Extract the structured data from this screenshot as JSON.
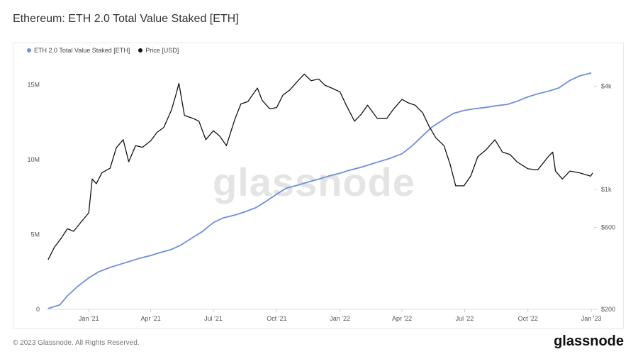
{
  "page": {
    "title": "Ethereum: ETH 2.0 Total Value Staked [ETH]",
    "watermark": "glassnode",
    "footer_copyright": "© 2023 Glassnode. All Rights Reserved.",
    "footer_brand": "glassnode"
  },
  "colors": {
    "staked": "#6f8fd8",
    "price": "#111111",
    "grid": "#f0f0f0"
  },
  "chart_data": {
    "type": "line",
    "title": "Ethereum: ETH 2.0 Total Value Staked [ETH]",
    "legend_position": "top-left",
    "grid": false,
    "xlabel": "",
    "x_ticks": [
      "Jan '21",
      "Apr '21",
      "Jul '21",
      "Oct '21",
      "Jan '22",
      "Apr '22",
      "Jul '22",
      "Oct '22",
      "Jan '23"
    ],
    "x_tick_dates": [
      "2021-01-01",
      "2021-04-01",
      "2021-07-01",
      "2021-10-01",
      "2022-01-01",
      "2022-04-01",
      "2022-07-01",
      "2022-10-01",
      "2023-01-01"
    ],
    "xlim": [
      "2020-11-01",
      "2023-01-05"
    ],
    "y_left": {
      "label": "",
      "ticks": [
        "0",
        "5M",
        "10M",
        "15M"
      ],
      "tick_values": [
        0,
        5000000,
        10000000,
        15000000
      ],
      "ylim": [
        0,
        16500000
      ]
    },
    "y_right": {
      "label": "",
      "scale": "log",
      "ticks": [
        "$200",
        "$600",
        "$1k",
        "$4k"
      ],
      "tick_values": [
        200,
        600,
        1000,
        4000
      ],
      "ylim": [
        200,
        5500
      ]
    },
    "series": [
      {
        "name": "ETH 2.0 Total Value Staked [ETH]",
        "axis": "left",
        "x": [
          "2020-11-03",
          "2020-11-20",
          "2020-12-01",
          "2020-12-15",
          "2021-01-01",
          "2021-01-15",
          "2021-02-01",
          "2021-02-15",
          "2021-03-01",
          "2021-03-15",
          "2021-04-01",
          "2021-04-15",
          "2021-05-01",
          "2021-05-15",
          "2021-06-01",
          "2021-06-15",
          "2021-07-01",
          "2021-07-15",
          "2021-08-01",
          "2021-08-15",
          "2021-09-01",
          "2021-09-15",
          "2021-10-01",
          "2021-10-15",
          "2021-11-01",
          "2021-11-15",
          "2021-12-01",
          "2021-12-15",
          "2022-01-01",
          "2022-01-15",
          "2022-02-01",
          "2022-02-15",
          "2022-03-01",
          "2022-03-15",
          "2022-04-01",
          "2022-04-15",
          "2022-05-01",
          "2022-05-15",
          "2022-06-01",
          "2022-06-15",
          "2022-07-01",
          "2022-07-15",
          "2022-08-01",
          "2022-08-15",
          "2022-09-01",
          "2022-09-15",
          "2022-10-01",
          "2022-10-15",
          "2022-11-01",
          "2022-11-15",
          "2022-12-01",
          "2022-12-15",
          "2023-01-01"
        ],
        "values": [
          50000,
          300000,
          900000,
          1500000,
          2100000,
          2500000,
          2800000,
          3000000,
          3200000,
          3400000,
          3600000,
          3800000,
          4000000,
          4300000,
          4800000,
          5200000,
          5800000,
          6100000,
          6300000,
          6500000,
          6800000,
          7200000,
          7700000,
          8100000,
          8300000,
          8500000,
          8700000,
          8900000,
          9100000,
          9300000,
          9500000,
          9700000,
          9900000,
          10100000,
          10400000,
          10900000,
          11600000,
          12200000,
          12700000,
          13100000,
          13300000,
          13400000,
          13500000,
          13600000,
          13700000,
          13900000,
          14200000,
          14400000,
          14600000,
          14800000,
          15300000,
          15600000,
          15800000
        ]
      },
      {
        "name": "Price [USD]",
        "axis": "right",
        "x": [
          "2020-11-03",
          "2020-11-12",
          "2020-11-22",
          "2020-12-01",
          "2020-12-10",
          "2020-12-20",
          "2021-01-01",
          "2021-01-06",
          "2021-01-12",
          "2021-01-20",
          "2021-02-01",
          "2021-02-10",
          "2021-02-20",
          "2021-02-28",
          "2021-03-10",
          "2021-03-20",
          "2021-04-01",
          "2021-04-10",
          "2021-04-20",
          "2021-05-01",
          "2021-05-07",
          "2021-05-12",
          "2021-05-20",
          "2021-06-01",
          "2021-06-10",
          "2021-06-20",
          "2021-07-01",
          "2021-07-10",
          "2021-07-20",
          "2021-08-01",
          "2021-08-10",
          "2021-08-20",
          "2021-09-03",
          "2021-09-10",
          "2021-09-21",
          "2021-10-01",
          "2021-10-10",
          "2021-10-20",
          "2021-11-01",
          "2021-11-10",
          "2021-11-20",
          "2021-12-01",
          "2021-12-10",
          "2021-12-20",
          "2022-01-01",
          "2022-01-10",
          "2022-01-22",
          "2022-02-01",
          "2022-02-10",
          "2022-02-24",
          "2022-03-10",
          "2022-03-20",
          "2022-04-01",
          "2022-04-10",
          "2022-04-20",
          "2022-05-01",
          "2022-05-10",
          "2022-05-20",
          "2022-06-01",
          "2022-06-10",
          "2022-06-18",
          "2022-06-30",
          "2022-07-10",
          "2022-07-20",
          "2022-08-01",
          "2022-08-14",
          "2022-08-25",
          "2022-09-05",
          "2022-09-15",
          "2022-10-01",
          "2022-10-15",
          "2022-11-01",
          "2022-11-06",
          "2022-11-10",
          "2022-11-20",
          "2022-12-01",
          "2022-12-15",
          "2022-12-31",
          "2023-01-03"
        ],
        "values": [
          390,
          460,
          520,
          590,
          570,
          640,
          730,
          1150,
          1080,
          1250,
          1330,
          1750,
          1950,
          1450,
          1800,
          1760,
          1920,
          2150,
          2300,
          2900,
          3500,
          4150,
          2700,
          2600,
          2500,
          1950,
          2200,
          2050,
          1800,
          2550,
          3150,
          3250,
          3900,
          3300,
          2950,
          3000,
          3550,
          3800,
          4300,
          4700,
          4300,
          4400,
          4050,
          3900,
          3700,
          3100,
          2500,
          2750,
          3100,
          2600,
          2600,
          2950,
          3350,
          3200,
          3100,
          2800,
          2350,
          2000,
          1800,
          1400,
          1050,
          1050,
          1200,
          1550,
          1700,
          1950,
          1650,
          1600,
          1450,
          1320,
          1300,
          1580,
          1650,
          1280,
          1150,
          1280,
          1250,
          1195,
          1250
        ]
      }
    ]
  }
}
